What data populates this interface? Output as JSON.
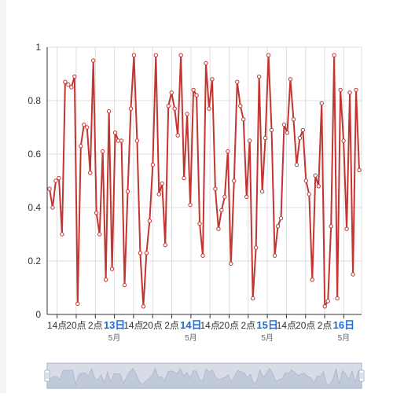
{
  "chart_data": {
    "type": "line",
    "title": "",
    "xlabel": "",
    "ylabel": "",
    "ylim": [
      0,
      1
    ],
    "y_ticks": [
      "0",
      "0.2",
      "0.4",
      "0.6",
      "0.8",
      "1"
    ],
    "grid": true,
    "legend": "none",
    "x_tick_labels": [
      {
        "text": "14点",
        "bold": false,
        "sub": ""
      },
      {
        "text": "20点",
        "bold": false,
        "sub": ""
      },
      {
        "text": "2点",
        "bold": false,
        "sub": ""
      },
      {
        "text": "13日",
        "bold": true,
        "sub": "5月"
      },
      {
        "text": "14点",
        "bold": false,
        "sub": ""
      },
      {
        "text": "20点",
        "bold": false,
        "sub": ""
      },
      {
        "text": "2点",
        "bold": false,
        "sub": ""
      },
      {
        "text": "14日",
        "bold": true,
        "sub": "5月"
      },
      {
        "text": "14点",
        "bold": false,
        "sub": ""
      },
      {
        "text": "20点",
        "bold": false,
        "sub": ""
      },
      {
        "text": "2点",
        "bold": false,
        "sub": ""
      },
      {
        "text": "15日",
        "bold": true,
        "sub": "5月"
      },
      {
        "text": "14点",
        "bold": false,
        "sub": ""
      },
      {
        "text": "20点",
        "bold": false,
        "sub": ""
      },
      {
        "text": "2点",
        "bold": false,
        "sub": ""
      },
      {
        "text": "16日",
        "bold": true,
        "sub": "5月"
      }
    ],
    "series": [
      {
        "color": "#c23531",
        "values": [
          0.47,
          0.4,
          0.5,
          0.51,
          0.3,
          0.87,
          0.86,
          0.85,
          0.89,
          0.04,
          0.63,
          0.71,
          0.7,
          0.53,
          0.95,
          0.38,
          0.3,
          0.61,
          0.13,
          0.76,
          0.17,
          0.68,
          0.65,
          0.65,
          0.11,
          0.46,
          0.77,
          0.97,
          0.65,
          0.23,
          0.03,
          0.23,
          0.35,
          0.56,
          0.97,
          0.45,
          0.49,
          0.26,
          0.78,
          0.83,
          0.77,
          0.67,
          0.97,
          0.51,
          0.75,
          0.41,
          0.84,
          0.82,
          0.34,
          0.22,
          0.94,
          0.77,
          0.88,
          0.47,
          0.32,
          0.39,
          0.44,
          0.61,
          0.19,
          0.5,
          0.87,
          0.78,
          0.73,
          0.44,
          0.65,
          0.06,
          0.25,
          0.89,
          0.46,
          0.66,
          0.97,
          0.69,
          0.22,
          0.33,
          0.36,
          0.71,
          0.68,
          0.88,
          0.73,
          0.56,
          0.66,
          0.69,
          0.5,
          0.45,
          0.13,
          0.52,
          0.48,
          0.79,
          0.03,
          0.05,
          0.33,
          0.97,
          0.06,
          0.84,
          0.65,
          0.32,
          0.83,
          0.15,
          0.84,
          0.54
        ]
      }
    ]
  },
  "colors": {
    "line": "#c23531",
    "grid": "#dddddd",
    "axis": "#333333",
    "tick_text": "#333333",
    "highlight_text": "#1e6bd6",
    "slider_fill": "#d7dce6",
    "slider_border": "#a9b4c9"
  }
}
